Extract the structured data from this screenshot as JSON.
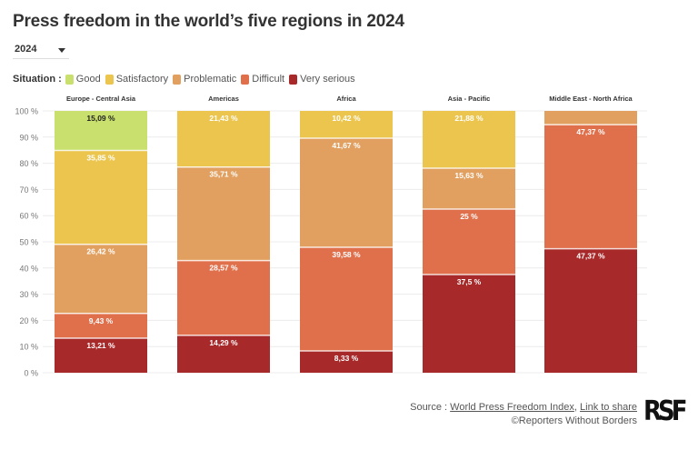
{
  "title": "Press freedom in the world’s five regions in 2024",
  "year_select": {
    "value": "2024"
  },
  "legend": {
    "label": "Situation :",
    "items": [
      {
        "name": "Good",
        "color": "#c9e06e"
      },
      {
        "name": "Satisfactory",
        "color": "#ebc54d"
      },
      {
        "name": "Problematic",
        "color": "#e1a060"
      },
      {
        "name": "Difficult",
        "color": "#e0704c"
      },
      {
        "name": "Very serious",
        "color": "#a8292a"
      }
    ]
  },
  "chart_data": {
    "type": "bar",
    "stacked": true,
    "title": "Press freedom in the world’s five regions in 2024",
    "categories": [
      "Europe - Central Asia",
      "Americas",
      "Africa",
      "Asia - Pacific",
      "Middle East - North Africa"
    ],
    "series": [
      {
        "name": "Very serious",
        "color": "#a8292a",
        "values": [
          13.21,
          14.29,
          8.33,
          37.5,
          47.37
        ],
        "labels": [
          "13,21 %",
          "14,29 %",
          "8,33 %",
          "37,5 %",
          "47,37 %"
        ]
      },
      {
        "name": "Difficult",
        "color": "#e0704c",
        "values": [
          9.43,
          28.57,
          39.58,
          25,
          47.37
        ],
        "labels": [
          "9,43 %",
          "28,57 %",
          "39,58 %",
          "25 %",
          "47,37 %"
        ]
      },
      {
        "name": "Problematic",
        "color": "#e1a060",
        "values": [
          26.42,
          35.71,
          41.67,
          15.63,
          5.26
        ],
        "labels": [
          "26,42 %",
          "35,71 %",
          "41,67 %",
          "15,63 %",
          ""
        ]
      },
      {
        "name": "Satisfactory",
        "color": "#ebc54d",
        "values": [
          35.85,
          21.43,
          10.42,
          21.88,
          0
        ],
        "labels": [
          "35,85 %",
          "21,43 %",
          "10,42 %",
          "21,88 %",
          ""
        ]
      },
      {
        "name": "Good",
        "color": "#c9e06e",
        "values": [
          15.09,
          0,
          0,
          0,
          0
        ],
        "labels": [
          "15,09 %",
          "",
          "",
          "",
          ""
        ]
      }
    ],
    "ylim": [
      0,
      100
    ],
    "yticks": [
      "0 %",
      "10 %",
      "20 %",
      "30 %",
      "40 %",
      "50 %",
      "60 %",
      "70 %",
      "80 %",
      "90 %",
      "100 %"
    ],
    "grid": true,
    "legend_position": "top-left"
  },
  "footer": {
    "source_prefix": "Source :",
    "source_link": "World Press Freedom Index",
    "separator": ",",
    "share_link": "Link to share",
    "copyright": "©Reporters Without Borders",
    "logo": "RSF"
  }
}
